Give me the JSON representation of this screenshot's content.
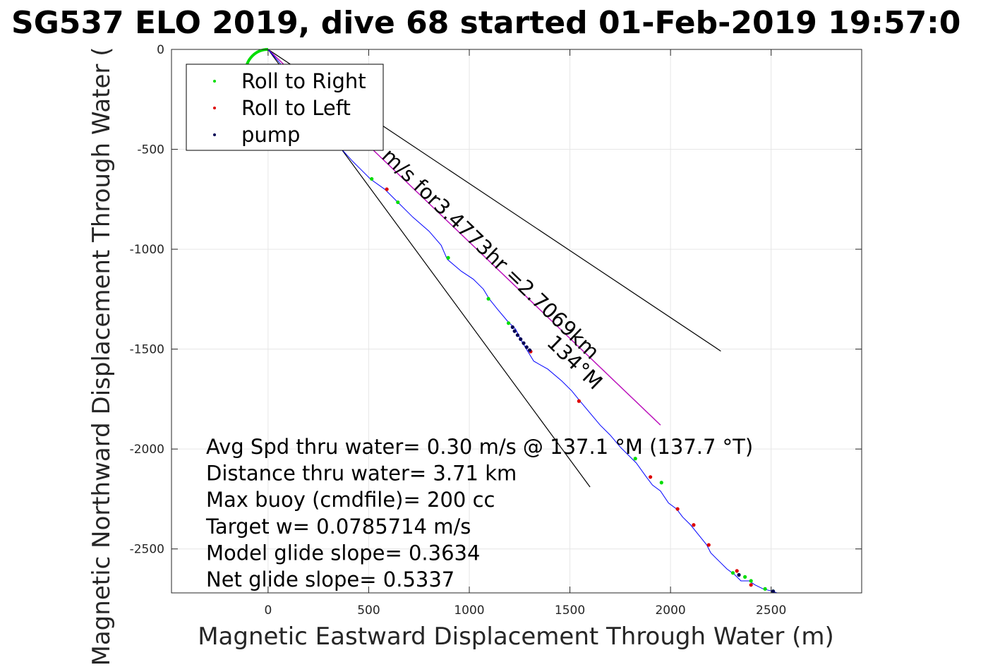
{
  "chart_data": {
    "type": "line",
    "title": "SG537 ELO 2019, dive 68 started 01-Feb-2019 19:57:0",
    "xlabel": "Magnetic Eastward Displacement Through Water (m)",
    "ylabel": "Magnetic Northward Displacement Through Water (",
    "xlim": [
      -480,
      2950
    ],
    "ylim": [
      -2720,
      0
    ],
    "xticks": [
      0,
      500,
      1000,
      1500,
      2000,
      2500
    ],
    "xtick_labels": [
      "0",
      "500",
      "1000",
      "1500",
      "2000",
      "2500"
    ],
    "yticks": [
      0,
      -500,
      -1000,
      -1500,
      -2000,
      -2500
    ],
    "ytick_labels": [
      "0",
      "-500",
      "-1000",
      "-1500",
      "-2000",
      "-2500"
    ],
    "grid": true,
    "legend": {
      "placement": "top-left",
      "entries": [
        {
          "label": "Roll to Right",
          "color": "#00dd00"
        },
        {
          "label": "Roll to Left",
          "color": "#dd0000"
        },
        {
          "label": "pump",
          "color": "#000055"
        }
      ]
    },
    "series": [
      {
        "color": "#0000ff",
        "x": [
          0,
          60,
          110,
          160,
          210,
          260,
          330,
          420,
          510,
          580,
          650,
          720,
          800,
          860,
          890,
          960,
          1020,
          1070,
          1100,
          1140,
          1190,
          1230,
          1260,
          1290,
          1320,
          1390,
          1460,
          1510,
          1550,
          1600,
          1650,
          1700,
          1750,
          1800,
          1830,
          1880,
          1910,
          1950,
          1990,
          2030,
          2060,
          2100,
          2140,
          2180,
          2200,
          2240,
          2280,
          2320,
          2350,
          2390,
          2420,
          2460,
          2500,
          2530
        ],
        "y": [
          0,
          -70,
          -150,
          -230,
          -300,
          -380,
          -460,
          -560,
          -650,
          -700,
          -770,
          -840,
          -910,
          -980,
          -1050,
          -1110,
          -1150,
          -1200,
          -1250,
          -1300,
          -1360,
          -1400,
          -1460,
          -1510,
          -1560,
          -1600,
          -1660,
          -1710,
          -1760,
          -1820,
          -1880,
          -1930,
          -1990,
          -2040,
          -2070,
          -2140,
          -2180,
          -2210,
          -2270,
          -2300,
          -2340,
          -2380,
          -2430,
          -2480,
          -2520,
          -2560,
          -2600,
          -2630,
          -2660,
          -2660,
          -2680,
          -2700,
          -2710,
          -2720
        ]
      }
    ],
    "roll_right_points": {
      "x": [
        515,
        645,
        895,
        1095,
        1195,
        1825,
        1955,
        2310,
        2370,
        2400,
        2470,
        2510
      ],
      "y": [
        -648,
        -765,
        -1043,
        -1248,
        -1370,
        -2048,
        -2168,
        -2620,
        -2640,
        -2660,
        -2700,
        -2712
      ]
    },
    "roll_left_points": {
      "x": [
        590,
        1305,
        1545,
        1900,
        2035,
        2115,
        2190,
        2330,
        2400
      ],
      "y": [
        -700,
        -1512,
        -1760,
        -2140,
        -2300,
        -2380,
        -2480,
        -2610,
        -2680
      ]
    },
    "pump_points": {
      "x": [
        1215,
        1225,
        1240,
        1255,
        1270,
        1285,
        1300,
        2340,
        2510
      ],
      "y": [
        -1390,
        -1410,
        -1430,
        -1450,
        -1470,
        -1490,
        -1505,
        -2630,
        -2712
      ]
    },
    "reference_lines": [
      {
        "x": [
          0,
          2250
        ],
        "y": [
          0,
          -1510
        ],
        "color": "#000000"
      },
      {
        "x": [
          0,
          1600
        ],
        "y": [
          0,
          -2190
        ],
        "color": "#000000"
      },
      {
        "x": [
          0,
          1950
        ],
        "y": [
          0,
          -1880
        ],
        "color": "#000000"
      },
      {
        "x": [
          0,
          1950
        ],
        "y": [
          0,
          -1880
        ],
        "color": "#cc00cc"
      }
    ],
    "start_circle": {
      "cx": 0,
      "cy": -110,
      "r": 110,
      "color": "#00dd00"
    },
    "line_label": {
      "text": "m/s for3.4773hr =2.7069km",
      "x": 560,
      "y": -540,
      "angle": 44
    },
    "heading_label": {
      "text": "134°M",
      "x": 1380,
      "y": -1475,
      "angle": 44
    },
    "annotations": [
      "Avg Spd thru water=  0.30 m/s @ 137.1 °M (137.7 °T)",
      "Distance thru water=  3.71 km",
      "Max buoy (cmdfile)= 200 cc",
      "Target w= 0.0785714 m/s",
      "Model glide slope= 0.3634",
      "Net glide slope= 0.5337"
    ]
  }
}
